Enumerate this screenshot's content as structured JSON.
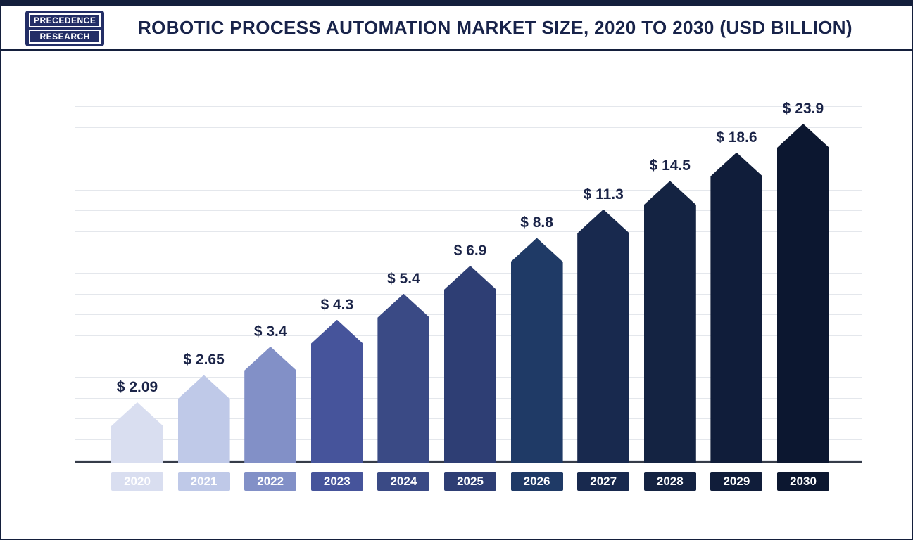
{
  "header": {
    "title": "ROBOTIC PROCESS AUTOMATION MARKET SIZE, 2020 TO 2030 (USD BILLION)",
    "logo": {
      "line1": "PRECEDENCE",
      "line2": "RESEARCH"
    }
  },
  "chart_data": {
    "type": "bar",
    "title": "Robotic Process Automation Market Size, 2020 to 2030 (USD Billion)",
    "unit": "USD Billion",
    "categories": [
      "2020",
      "2021",
      "2022",
      "2023",
      "2024",
      "2025",
      "2026",
      "2027",
      "2028",
      "2029",
      "2030"
    ],
    "values": [
      2.09,
      2.65,
      3.4,
      4.3,
      5.4,
      6.9,
      8.8,
      11.3,
      14.5,
      18.6,
      23.9
    ],
    "value_labels": [
      "$ 2.09",
      "$ 2.65",
      "$ 3.4",
      "$ 4.3",
      "$ 5.4",
      "$ 6.9",
      "$ 8.8",
      "$ 11.3",
      "$ 14.5",
      "$ 18.6",
      "$ 23.9"
    ],
    "bar_colors": [
      "#d9def0",
      "#bfc9e8",
      "#8290c7",
      "#46549b",
      "#3a4a85",
      "#2e3e74",
      "#1f3a66",
      "#18294e",
      "#142342",
      "#101d3a",
      "#0c1730"
    ],
    "label_color": "#1b2448",
    "tick_text_color": "#ffffff",
    "xlabel": "",
    "ylabel": "",
    "ylim": [
      0,
      25
    ],
    "grid": "horizontal",
    "legend": "none",
    "bar_shape": "pointed-top pentagon"
  }
}
